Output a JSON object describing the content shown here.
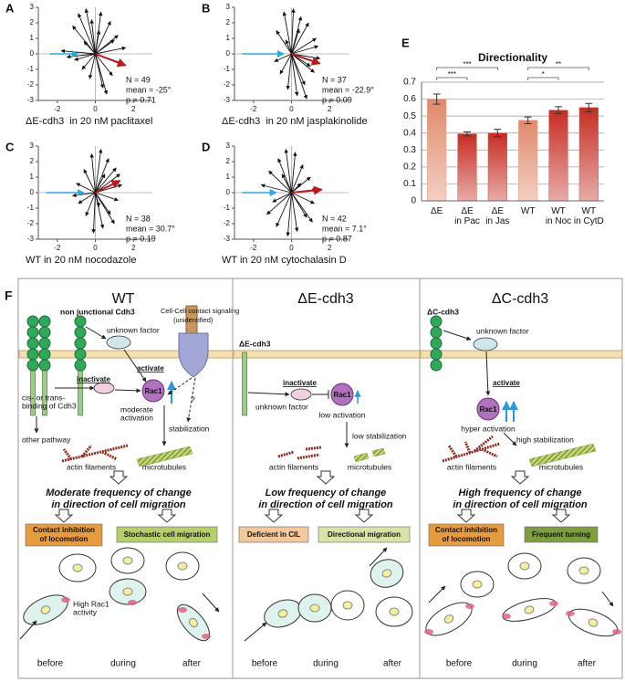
{
  "chart_data": [
    {
      "type": "quiver",
      "label": "A",
      "caption": "ΔE-cdh3  in 20 nM paclitaxel",
      "stats": [
        "N = 49",
        "mean = -25°",
        "p = 0.71"
      ],
      "xlim": [
        -3,
        3
      ],
      "ylim": [
        -3,
        3
      ],
      "xticks": [
        -2,
        0,
        2
      ],
      "yticks": [
        -3,
        -2,
        -1,
        0,
        1,
        2,
        3
      ],
      "vectors": {
        "x": [
          -1.8,
          -1.2,
          -0.9,
          -0.5,
          -0.2,
          0.3,
          0.8,
          1.2,
          1.6,
          1.4,
          0.9,
          0.4,
          -0.3,
          -0.7,
          -1.1,
          0.6,
          1.0,
          -1.5,
          0.2,
          -0.6
        ],
        "y": [
          0.2,
          1.8,
          2.6,
          2.9,
          2.2,
          2.7,
          2.1,
          1.2,
          0.4,
          -0.6,
          -1.4,
          -2.2,
          -1.6,
          -1.0,
          -0.4,
          -2.6,
          0.9,
          -0.2,
          1.5,
          0.8
        ],
        "color": "#111111"
      },
      "mean_vector": {
        "x": 1.6,
        "y": -0.75,
        "color": "#c0161b"
      },
      "cue_vector": {
        "x": [
          -2.4,
          -0.9
        ],
        "y": [
          0,
          0
        ],
        "color": "#29abe2"
      }
    },
    {
      "type": "quiver",
      "label": "B",
      "caption": "ΔE-cdh3  in 20 nM jasplakinolide",
      "stats": [
        "N = 37",
        "mean = -22.9°",
        "p = 0.09"
      ],
      "xlim": [
        -3,
        3
      ],
      "ylim": [
        -3,
        3
      ],
      "xticks": [
        -2,
        0,
        2
      ],
      "yticks": [
        -3,
        -2,
        -1,
        0,
        1,
        2,
        3
      ],
      "vectors": {
        "x": [
          -0.8,
          -0.4,
          0.1,
          0.5,
          0.9,
          1.3,
          1.5,
          1.2,
          0.7,
          0.3,
          -0.2,
          -0.6,
          1.0,
          0.4,
          -0.3,
          0.8,
          1.4,
          -0.9
        ],
        "y": [
          1.5,
          2.7,
          2.9,
          2.4,
          2.0,
          1.0,
          -0.3,
          -1.2,
          -2.0,
          -2.7,
          -2.3,
          -1.3,
          -0.8,
          1.6,
          0.9,
          -2.9,
          0.5,
          -0.5
        ],
        "color": "#111111"
      },
      "mean_vector": {
        "x": 1.5,
        "y": -0.63,
        "color": "#c0161b"
      },
      "cue_vector": {
        "x": [
          -2.6,
          -0.4
        ],
        "y": [
          0,
          0
        ],
        "color": "#29abe2"
      }
    },
    {
      "type": "quiver",
      "label": "C",
      "caption": "WT in 20 nM nocodazole",
      "stats": [
        "N = 38",
        "mean = 30.7°",
        "p = 0.19"
      ],
      "xlim": [
        -3,
        3
      ],
      "ylim": [
        -3,
        3
      ],
      "xticks": [
        -2,
        0,
        2
      ],
      "yticks": [
        -3,
        -2,
        -1,
        0,
        1,
        2,
        3
      ],
      "vectors": {
        "x": [
          -1.0,
          -0.6,
          -0.2,
          0.3,
          0.7,
          1.1,
          1.4,
          1.2,
          0.8,
          0.4,
          -0.1,
          -0.5,
          -0.9,
          0.5,
          1.0,
          -1.2,
          0.2,
          1.3
        ],
        "y": [
          0.6,
          1.5,
          2.5,
          2.8,
          2.2,
          1.6,
          0.5,
          -0.5,
          -1.4,
          -2.3,
          -2.6,
          -1.5,
          -0.7,
          1.2,
          -2.0,
          -0.2,
          -0.9,
          1.2
        ],
        "color": "#111111"
      },
      "mean_vector": {
        "x": 1.3,
        "y": 0.77,
        "color": "#c0161b"
      },
      "cue_vector": {
        "x": [
          -2.6,
          -0.6
        ],
        "y": [
          0,
          0
        ],
        "color": "#29abe2"
      }
    },
    {
      "type": "quiver",
      "label": "D",
      "caption": "WT in 20 nM cytochalasin D",
      "stats": [
        "N = 42",
        "mean = 7.1°",
        "p = 0.87"
      ],
      "xlim": [
        -3,
        3
      ],
      "ylim": [
        -3,
        3
      ],
      "xticks": [
        -2,
        0,
        2
      ],
      "yticks": [
        -3,
        -2,
        -1,
        0,
        1,
        2,
        3
      ],
      "vectors": {
        "x": [
          -1.6,
          -1.2,
          -0.7,
          -0.3,
          0.2,
          0.6,
          1.0,
          1.3,
          1.2,
          0.8,
          0.3,
          -0.2,
          -0.8,
          -1.3,
          -1.0,
          0.5,
          -0.5,
          1.1
        ],
        "y": [
          0.5,
          1.4,
          2.2,
          2.8,
          2.6,
          1.8,
          1.0,
          0.2,
          -0.7,
          -1.6,
          -2.5,
          -2.8,
          -2.2,
          -1.4,
          -0.6,
          0.6,
          1.2,
          -1.9
        ],
        "color": "#111111"
      },
      "mean_vector": {
        "x": 1.6,
        "y": 0.2,
        "color": "#c0161b"
      },
      "cue_vector": {
        "x": [
          -2.6,
          -0.8
        ],
        "y": [
          0,
          0
        ],
        "color": "#29abe2"
      }
    },
    {
      "type": "bar",
      "label": "E",
      "title": "Directionality",
      "categories": [
        [
          "ΔE"
        ],
        [
          "ΔE",
          "in Pac"
        ],
        [
          "ΔE",
          "in Jas"
        ],
        [
          "WT"
        ],
        [
          "WT",
          "in Noc"
        ],
        [
          "WT",
          "in CytD"
        ]
      ],
      "values": [
        0.6,
        0.395,
        0.4,
        0.475,
        0.535,
        0.55
      ],
      "errors": [
        0.03,
        0.012,
        0.022,
        0.02,
        0.02,
        0.025
      ],
      "colors": [
        "#e0896a",
        "#c62c22",
        "#c62c22",
        "#e0896a",
        "#c62c22",
        "#c62c22"
      ],
      "ylim": [
        0,
        0.7
      ],
      "yticks": [
        0,
        0.1,
        0.2,
        0.3,
        0.4,
        0.5,
        0.6,
        0.7
      ],
      "grid": true,
      "annotations": [
        {
          "text": "***",
          "between": [
            0,
            2
          ]
        },
        {
          "text": "***",
          "between": [
            0,
            1
          ]
        },
        {
          "text": "**",
          "between": [
            3,
            5
          ]
        },
        {
          "text": "*",
          "between": [
            3,
            4
          ]
        }
      ]
    }
  ],
  "panel_f": {
    "label": "F",
    "columns": [
      {
        "title": "WT",
        "texts": [
          "non junctional Cdh3",
          "Cell-Cell contact signaling",
          "(unidentified)",
          "unknown factor",
          "activate",
          "inactivate",
          "Rac1",
          "moderate",
          "activation",
          "?",
          "stabilization",
          "cis- or trans-",
          "binding of Cdh3",
          "other pathway",
          "actin filaments",
          "microtubules",
          "Moderate frequency of change",
          "in direction of cell migration",
          "Contact inhibition",
          "of locomotion",
          "Stochastic cell migration",
          "High Rac1",
          "activity",
          "before",
          "during",
          "after"
        ]
      },
      {
        "title": "ΔE-cdh3",
        "texts": [
          "ΔE-cdh3",
          "inactivate",
          "unknown factor",
          "Rac1",
          "low activation",
          "low stabilization",
          "actin filaments",
          "microtubules",
          "Low frequency of change",
          "in direction of cell migration",
          "Deficient in CIL",
          "Directional migration",
          "before",
          "during",
          "after"
        ]
      },
      {
        "title": "ΔC-cdh3",
        "texts": [
          "ΔC-cdh3",
          "unknown factor",
          "activate",
          "Rac1",
          "hyper activation",
          "high stabilization",
          "actin filaments",
          "microtubules",
          "High frequency of change",
          "in direction of cell migration",
          "Contact inhibition",
          "of locomotion",
          "Frequent turning",
          "before",
          "during",
          "after"
        ]
      }
    ]
  }
}
